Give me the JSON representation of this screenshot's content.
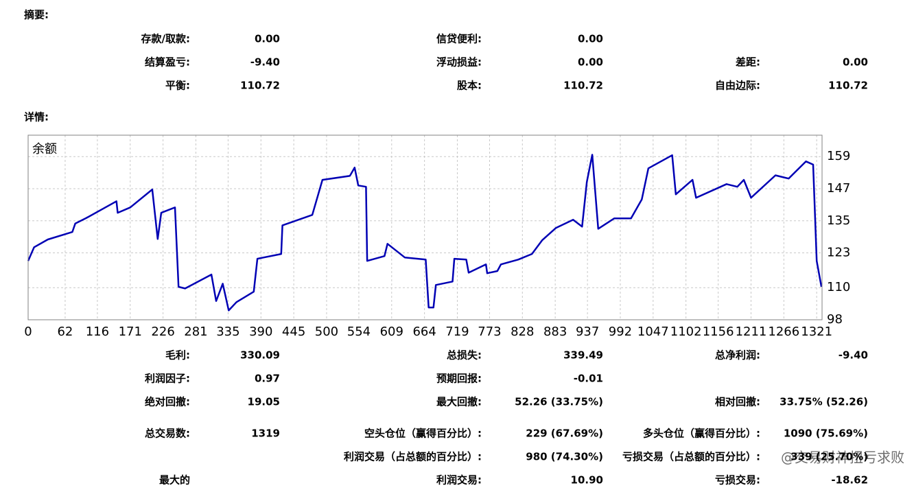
{
  "summary": {
    "title": "摘要:",
    "rows": [
      [
        {
          "label": "存款/取款:",
          "value": "0.00"
        },
        {
          "label": "信贷便利:",
          "value": "0.00"
        },
        null
      ],
      [
        {
          "label": "结算盈亏:",
          "value": "-9.40"
        },
        {
          "label": "浮动损益:",
          "value": "0.00"
        },
        {
          "label": "差距:",
          "value": "0.00"
        }
      ],
      [
        {
          "label": "平衡:",
          "value": "110.72"
        },
        {
          "label": "股本:",
          "value": "110.72"
        },
        {
          "label": "自由边际:",
          "value": "110.72"
        }
      ]
    ]
  },
  "details": {
    "title": "详情:",
    "rows": [
      [
        {
          "label": "毛利:",
          "value": "330.09"
        },
        {
          "label": "总损失:",
          "value": "339.49"
        },
        {
          "label": "总净利润:",
          "value": "-9.40"
        }
      ],
      [
        {
          "label": "利润因子:",
          "value": "0.97"
        },
        {
          "label": "预期回报:",
          "value": "-0.01"
        },
        null
      ],
      [
        {
          "label": "绝对回撤:",
          "value": "19.05"
        },
        {
          "label": "最大回撤:",
          "value": "52.26 (33.75%)"
        },
        {
          "label": "相对回撤:",
          "value": "33.75% (52.26)"
        }
      ],
      [
        {
          "label": "总交易数:",
          "value": "1319"
        },
        {
          "label": "空头仓位（赢得百分比）:",
          "value": "229 (67.69%)"
        },
        {
          "label": "多头仓位（赢得百分比）:",
          "value": "1090 (75.69%)"
        }
      ],
      [
        null,
        {
          "label": "利润交易（占总额的百分比）:",
          "value": "980 (74.30%)"
        },
        {
          "label": "亏损交易（占总额的百分比）:",
          "value": "339 (25.70%)"
        }
      ],
      [
        {
          "label": "最大的"
        },
        {
          "label": "利润交易:",
          "value": "10.90"
        },
        {
          "label": "亏损交易:",
          "value": "-18.62"
        }
      ]
    ]
  },
  "watermark": "@交易财神扭亏求败",
  "chart_data": {
    "type": "line",
    "title": "余额",
    "color": "#0000b4",
    "grid": true,
    "xlim": [
      0,
      1330
    ],
    "ylim": [
      98,
      167
    ],
    "xticks": [
      0,
      62,
      116,
      171,
      226,
      281,
      335,
      390,
      445,
      500,
      554,
      609,
      664,
      719,
      773,
      828,
      883,
      937,
      992,
      1047,
      1102,
      1156,
      1211,
      1266,
      1321
    ],
    "yticks": [
      98,
      110,
      123,
      135,
      147,
      159
    ],
    "x": [
      0,
      10,
      33,
      74,
      79,
      97,
      148,
      150,
      171,
      208,
      217,
      223,
      246,
      252,
      263,
      307,
      315,
      326,
      336,
      349,
      378,
      384,
      424,
      426,
      476,
      493,
      539,
      547,
      553,
      566,
      568,
      597,
      602,
      631,
      666,
      671,
      679,
      683,
      711,
      714,
      734,
      738,
      767,
      769,
      786,
      792,
      821,
      844,
      861,
      884,
      913,
      928,
      936,
      945,
      955,
      982,
      1010,
      1028,
      1039,
      1079,
      1085,
      1113,
      1119,
      1170,
      1188,
      1199,
      1211,
      1252,
      1274,
      1303,
      1315,
      1321,
      1329
    ],
    "values": [
      120,
      125.1,
      128,
      130.8,
      134,
      136,
      142.3,
      138,
      140,
      146.7,
      128.2,
      138,
      140,
      110.3,
      109.7,
      114.9,
      105,
      111.5,
      101.5,
      104.6,
      108.5,
      120.8,
      122.6,
      133.3,
      137.2,
      150.3,
      151.8,
      154.9,
      148.2,
      147.7,
      120,
      121.8,
      126.4,
      121.3,
      120.5,
      102.6,
      102.6,
      111,
      112.3,
      120.8,
      120.5,
      115.6,
      118.7,
      115.4,
      116.2,
      118.7,
      120.5,
      122.6,
      127.7,
      132.3,
      135.4,
      132.8,
      149.5,
      159.7,
      132,
      135.9,
      135.9,
      143,
      154.6,
      159.5,
      144.9,
      150.3,
      143.6,
      148.7,
      147.7,
      150.3,
      143.6,
      152,
      150.8,
      157.2,
      156,
      120,
      110.3
    ]
  }
}
